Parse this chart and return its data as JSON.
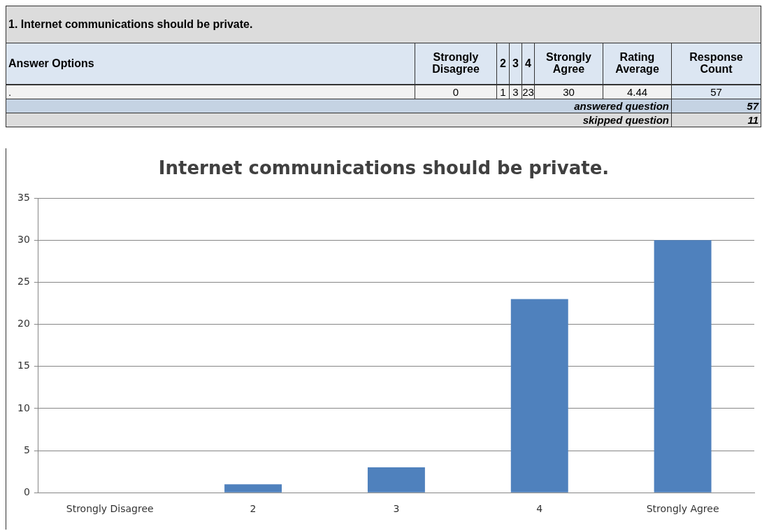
{
  "chart_data": {
    "type": "bar",
    "title": "Internet communications should be private.",
    "subtitle": "1.  Internet communications should be private.",
    "categories": [
      "Strongly Disagree",
      "2",
      "3",
      "4",
      "Strongly Agree"
    ],
    "values": [
      0,
      1,
      3,
      23,
      30
    ],
    "color": "#4f81bd",
    "ylim": [
      0,
      35
    ],
    "yticks": [
      0,
      5,
      10,
      15,
      20,
      25,
      30,
      35
    ],
    "grid": "y",
    "legend": false,
    "annotations": [
      "Answer Options",
      ".",
      "Rating Average",
      "4.44",
      "Response Count",
      "57",
      "answered question",
      "57",
      "skipped question",
      "11",
      "0",
      "1",
      "3",
      "23",
      "30"
    ]
  }
}
